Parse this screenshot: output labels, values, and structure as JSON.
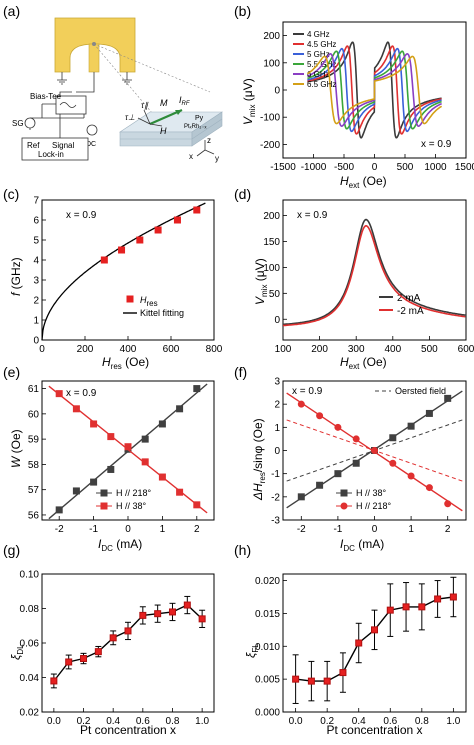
{
  "panel_labels": [
    "(a)",
    "(b)",
    "(c)",
    "(d)",
    "(e)",
    "(f)",
    "(g)",
    "(h)"
  ],
  "schematic": {
    "bias_tee": "Bias-Tee",
    "sg": "SG",
    "dc": "DC",
    "ref": "Ref",
    "signal": "Signal",
    "lock_in": "Lock-in",
    "tau_par": "τ∥",
    "tau_perp": "τ⊥",
    "m": "M",
    "irf": "I",
    "irf_sub": "RF",
    "h": "H",
    "py": "Py",
    "ptrh": "PtₓRh₁₋ₓ",
    "ax_x": "x",
    "ax_y": "y",
    "ax_z": "z",
    "colors": {
      "pad": "#f2cf5a",
      "film_top": "#dfe9f0",
      "film_side": "#c9d7e0",
      "arrow_m": "#2e8b3a",
      "line": "#333333"
    }
  },
  "chart_data": [
    {
      "id": "b",
      "type": "line",
      "xlabel": "H",
      "xlabel_sub": "ext",
      "xlabel_unit": " (Oe)",
      "ylabel": "V",
      "ylabel_sub": "mix",
      "ylabel_unit": " (μV)",
      "xlim": [
        -1500,
        1500
      ],
      "ylim": [
        -250,
        250
      ],
      "xticks": [
        -1500,
        -1000,
        -500,
        0,
        500,
        1000,
        1500
      ],
      "yticks": [
        -200,
        -100,
        0,
        100,
        200
      ],
      "annotation": "x = 0.9",
      "legend": "top-left",
      "series": [
        {
          "name": "4 GHz",
          "color": "#3a3a3a",
          "hres": 290,
          "dh": 70,
          "amp": 185
        },
        {
          "name": "4.5 GHz",
          "color": "#e03030",
          "hres": 370,
          "dh": 75,
          "amp": 170
        },
        {
          "name": "5 GHz",
          "color": "#3a60d8",
          "hres": 455,
          "dh": 80,
          "amp": 160
        },
        {
          "name": "5.5 GHz",
          "color": "#3aa63a",
          "hres": 540,
          "dh": 86,
          "amp": 150
        },
        {
          "name": "6 GHz",
          "color": "#8a3fc4",
          "hres": 630,
          "dh": 92,
          "amp": 140
        },
        {
          "name": "6.5 GHz",
          "color": "#d4a017",
          "hres": 720,
          "dh": 98,
          "amp": 130
        }
      ]
    },
    {
      "id": "c",
      "type": "scatter",
      "xlabel": "H",
      "xlabel_sub": "res",
      "xlabel_unit": " (Oe)",
      "ylabel": "f",
      "ylabel_unit": " (GHz)",
      "xlim": [
        0,
        800
      ],
      "ylim": [
        0,
        7
      ],
      "xticks": [
        0,
        200,
        400,
        600,
        800
      ],
      "yticks": [
        0,
        1,
        2,
        3,
        4,
        5,
        6,
        7
      ],
      "annotation": "x = 0.9",
      "legend": "bottom-right",
      "points_name": "H",
      "points_name_sub": "res",
      "fit_name": "Kittel fitting",
      "x": [
        290,
        370,
        455,
        540,
        630,
        720
      ],
      "y": [
        4.0,
        4.5,
        5.0,
        5.5,
        6.0,
        6.5
      ],
      "fit": {
        "Meff": 7100
      },
      "point_color": "#e52020"
    },
    {
      "id": "d",
      "type": "line",
      "xlabel": "H",
      "xlabel_sub": "ext",
      "xlabel_unit": " (Oe)",
      "ylabel": "V",
      "ylabel_sub": "mix",
      "ylabel_unit": " (μV)",
      "xlim": [
        100,
        600
      ],
      "ylim": [
        -40,
        230
      ],
      "xticks": [
        100,
        200,
        300,
        400,
        500,
        600
      ],
      "yticks": [
        0,
        50,
        100,
        150,
        200
      ],
      "annotation": "x = 0.9",
      "legend": "bottom-right",
      "series": [
        {
          "name": "2 mA",
          "color": "#3a3a3a",
          "peak": 206
        },
        {
          "name": "-2 mA",
          "color": "#e03030",
          "peak": 196
        }
      ]
    },
    {
      "id": "e",
      "type": "scatter",
      "xlabel": "I",
      "xlabel_sub": "DC",
      "xlabel_unit": " (mA)",
      "ylabel": "W",
      "ylabel_unit": " (Oe)",
      "xlim": [
        -2.5,
        2.5
      ],
      "ylim": [
        55.8,
        61.3
      ],
      "xticks": [
        -2,
        -1,
        0,
        1,
        2
      ],
      "yticks": [
        56,
        57,
        58,
        59,
        60,
        61
      ],
      "annotation": "x = 0.9",
      "legend": "bottom-left",
      "series": [
        {
          "name": "H // 218°",
          "color": "#404040",
          "fill": "#404040",
          "x": [
            -2,
            -1.5,
            -1,
            -0.5,
            0,
            0.5,
            1,
            1.5,
            2
          ],
          "y": [
            56.2,
            56.95,
            57.3,
            57.8,
            58.6,
            59.0,
            59.6,
            60.2,
            61.0
          ]
        },
        {
          "name": "H // 38°",
          "color": "#e03030",
          "fill": "#e03030",
          "x": [
            -2,
            -1.5,
            -1,
            -0.5,
            0,
            0.5,
            1,
            1.5,
            2
          ],
          "y": [
            60.8,
            60.2,
            59.6,
            59.1,
            58.7,
            58.1,
            57.5,
            56.9,
            56.4
          ]
        }
      ]
    },
    {
      "id": "f",
      "type": "scatter",
      "xlabel": "I",
      "xlabel_sub": "DC",
      "xlabel_unit": " (mA)",
      "ylabel": "ΔH",
      "ylabel_sub": "res",
      "ylabel_unit": "/sinφ (Oe)",
      "xlim": [
        -2.5,
        2.5
      ],
      "ylim": [
        -3,
        3
      ],
      "xticks": [
        -2,
        -1,
        0,
        1,
        2
      ],
      "yticks": [
        -3,
        -2,
        -1,
        0,
        1,
        2,
        3
      ],
      "annotation": "x = 0.9",
      "oersted_label": "Oersted field",
      "legend": "bottom-left",
      "series": [
        {
          "name": "H // 38°",
          "color": "#404040",
          "marker": "square",
          "x": [
            -2,
            -1.5,
            -1,
            -0.5,
            0,
            0.5,
            1,
            1.5,
            2
          ],
          "y": [
            -2.0,
            -1.5,
            -1.0,
            -0.55,
            0.0,
            0.55,
            1.05,
            1.6,
            2.25
          ]
        },
        {
          "name": "H // 218°",
          "color": "#e03030",
          "marker": "circle",
          "x": [
            -2,
            -1.5,
            -1,
            -0.5,
            0,
            0.5,
            1,
            1.5,
            2
          ],
          "y": [
            2.0,
            1.5,
            1.0,
            0.5,
            0.0,
            -0.55,
            -1.1,
            -1.6,
            -2.3
          ]
        }
      ],
      "oersted": [
        {
          "slope": 0.55,
          "color": "#404040"
        },
        {
          "slope": -0.55,
          "color": "#e03030"
        }
      ]
    },
    {
      "id": "g",
      "type": "line",
      "xlabel": "Pt concentration x",
      "ylabel": "ξ",
      "ylabel_sub": "DL",
      "xlim": [
        -0.08,
        1.08
      ],
      "ylim": [
        0.02,
        0.1
      ],
      "xticks": [
        0.0,
        0.2,
        0.4,
        0.6,
        0.8,
        1.0
      ],
      "yticks": [
        0.02,
        0.04,
        0.06,
        0.08,
        0.1
      ],
      "x": [
        0.0,
        0.1,
        0.2,
        0.3,
        0.4,
        0.5,
        0.6,
        0.7,
        0.8,
        0.9,
        1.0
      ],
      "y": [
        0.038,
        0.049,
        0.051,
        0.055,
        0.063,
        0.067,
        0.076,
        0.077,
        0.078,
        0.082,
        0.074
      ],
      "err": [
        0.004,
        0.004,
        0.003,
        0.003,
        0.004,
        0.005,
        0.005,
        0.005,
        0.005,
        0.005,
        0.005
      ]
    },
    {
      "id": "h",
      "type": "line",
      "xlabel": "Pt concentration x",
      "ylabel": "ξ",
      "ylabel_sub": "FL",
      "xlim": [
        -0.08,
        1.08
      ],
      "ylim": [
        0.0,
        0.021
      ],
      "xticks": [
        0.0,
        0.2,
        0.4,
        0.6,
        0.8,
        1.0
      ],
      "yticks": [
        0.0,
        0.005,
        0.01,
        0.015,
        0.02
      ],
      "x": [
        0.0,
        0.1,
        0.2,
        0.3,
        0.4,
        0.5,
        0.6,
        0.7,
        0.8,
        0.9,
        1.0
      ],
      "y": [
        0.005,
        0.0047,
        0.0047,
        0.006,
        0.0105,
        0.0125,
        0.0155,
        0.016,
        0.016,
        0.0172,
        0.0175
      ],
      "err": [
        0.0037,
        0.003,
        0.003,
        0.003,
        0.003,
        0.003,
        0.004,
        0.0037,
        0.0035,
        0.0028,
        0.003
      ]
    }
  ]
}
